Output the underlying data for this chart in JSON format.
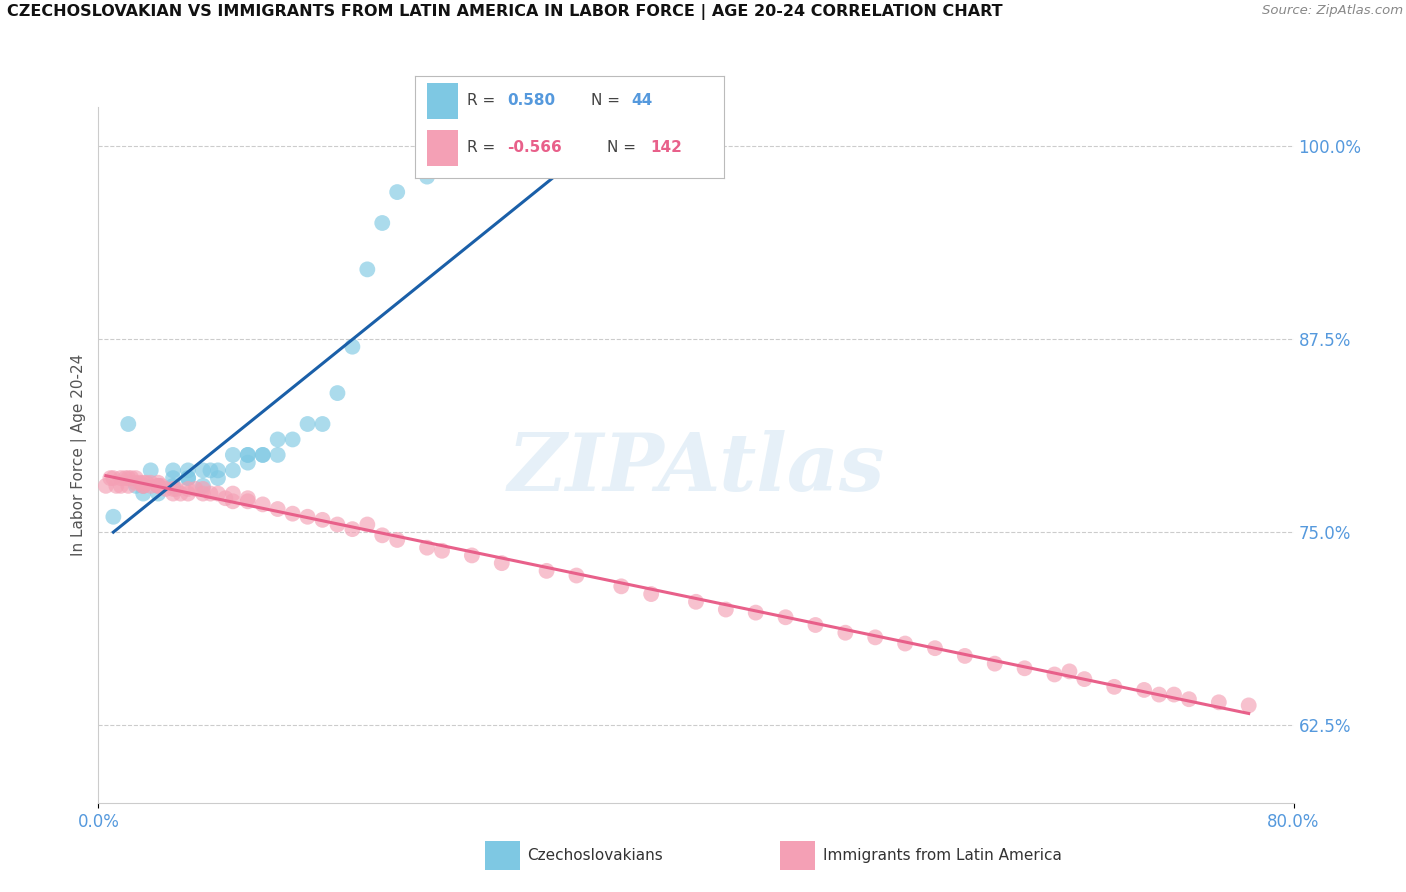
{
  "title": "CZECHOSLOVAKIAN VS IMMIGRANTS FROM LATIN AMERICA IN LABOR FORCE | AGE 20-24 CORRELATION CHART",
  "source": "Source: ZipAtlas.com",
  "ylabel": "In Labor Force | Age 20-24",
  "xlim": [
    0.0,
    0.8
  ],
  "ylim": [
    0.575,
    1.025
  ],
  "ytick_positions": [
    0.625,
    0.75,
    0.875,
    1.0
  ],
  "ytick_labels": [
    "62.5%",
    "75.0%",
    "87.5%",
    "100.0%"
  ],
  "legend_blue_r_val": "0.580",
  "legend_blue_n_val": "44",
  "legend_pink_r_val": "-0.566",
  "legend_pink_n_val": "142",
  "legend_label_blue": "Czechoslovakians",
  "legend_label_pink": "Immigrants from Latin America",
  "blue_color": "#7ec8e3",
  "pink_color": "#f4a0b5",
  "blue_line_color": "#1a5fa8",
  "pink_line_color": "#e8608a",
  "watermark": "ZIPAtlas",
  "blue_scatter_x": [
    0.01,
    0.02,
    0.025,
    0.03,
    0.03,
    0.035,
    0.04,
    0.04,
    0.05,
    0.05,
    0.05,
    0.06,
    0.06,
    0.06,
    0.07,
    0.07,
    0.075,
    0.08,
    0.08,
    0.09,
    0.09,
    0.1,
    0.1,
    0.1,
    0.11,
    0.11,
    0.12,
    0.12,
    0.13,
    0.14,
    0.15,
    0.16,
    0.17,
    0.18,
    0.19,
    0.2,
    0.22,
    0.24,
    0.26,
    0.28,
    0.3,
    0.33,
    0.36,
    0.4
  ],
  "blue_scatter_y": [
    0.76,
    0.82,
    0.78,
    0.775,
    0.78,
    0.79,
    0.775,
    0.78,
    0.79,
    0.785,
    0.78,
    0.785,
    0.79,
    0.785,
    0.79,
    0.78,
    0.79,
    0.79,
    0.785,
    0.8,
    0.79,
    0.8,
    0.795,
    0.8,
    0.8,
    0.8,
    0.81,
    0.8,
    0.81,
    0.82,
    0.82,
    0.84,
    0.87,
    0.92,
    0.95,
    0.97,
    0.98,
    0.985,
    0.99,
    0.99,
    0.99,
    0.99,
    0.99,
    0.99
  ],
  "pink_scatter_x": [
    0.005,
    0.008,
    0.01,
    0.012,
    0.015,
    0.015,
    0.018,
    0.02,
    0.02,
    0.022,
    0.025,
    0.025,
    0.028,
    0.03,
    0.03,
    0.03,
    0.032,
    0.035,
    0.035,
    0.04,
    0.04,
    0.04,
    0.042,
    0.045,
    0.05,
    0.05,
    0.052,
    0.055,
    0.06,
    0.06,
    0.065,
    0.07,
    0.07,
    0.075,
    0.08,
    0.085,
    0.09,
    0.09,
    0.1,
    0.1,
    0.11,
    0.12,
    0.13,
    0.14,
    0.15,
    0.16,
    0.17,
    0.18,
    0.19,
    0.2,
    0.22,
    0.23,
    0.25,
    0.27,
    0.3,
    0.32,
    0.35,
    0.37,
    0.4,
    0.42,
    0.44,
    0.46,
    0.48,
    0.5,
    0.52,
    0.54,
    0.56,
    0.58,
    0.6,
    0.62,
    0.64,
    0.65,
    0.66,
    0.68,
    0.7,
    0.71,
    0.72,
    0.73,
    0.75,
    0.77
  ],
  "pink_scatter_y": [
    0.78,
    0.785,
    0.785,
    0.78,
    0.78,
    0.785,
    0.785,
    0.785,
    0.78,
    0.785,
    0.785,
    0.782,
    0.782,
    0.78,
    0.782,
    0.78,
    0.782,
    0.78,
    0.782,
    0.78,
    0.78,
    0.782,
    0.78,
    0.778,
    0.775,
    0.778,
    0.778,
    0.775,
    0.778,
    0.775,
    0.778,
    0.775,
    0.778,
    0.775,
    0.775,
    0.772,
    0.775,
    0.77,
    0.772,
    0.77,
    0.768,
    0.765,
    0.762,
    0.76,
    0.758,
    0.755,
    0.752,
    0.755,
    0.748,
    0.745,
    0.74,
    0.738,
    0.735,
    0.73,
    0.725,
    0.722,
    0.715,
    0.71,
    0.705,
    0.7,
    0.698,
    0.695,
    0.69,
    0.685,
    0.682,
    0.678,
    0.675,
    0.67,
    0.665,
    0.662,
    0.658,
    0.66,
    0.655,
    0.65,
    0.648,
    0.645,
    0.645,
    0.642,
    0.64,
    0.638
  ]
}
